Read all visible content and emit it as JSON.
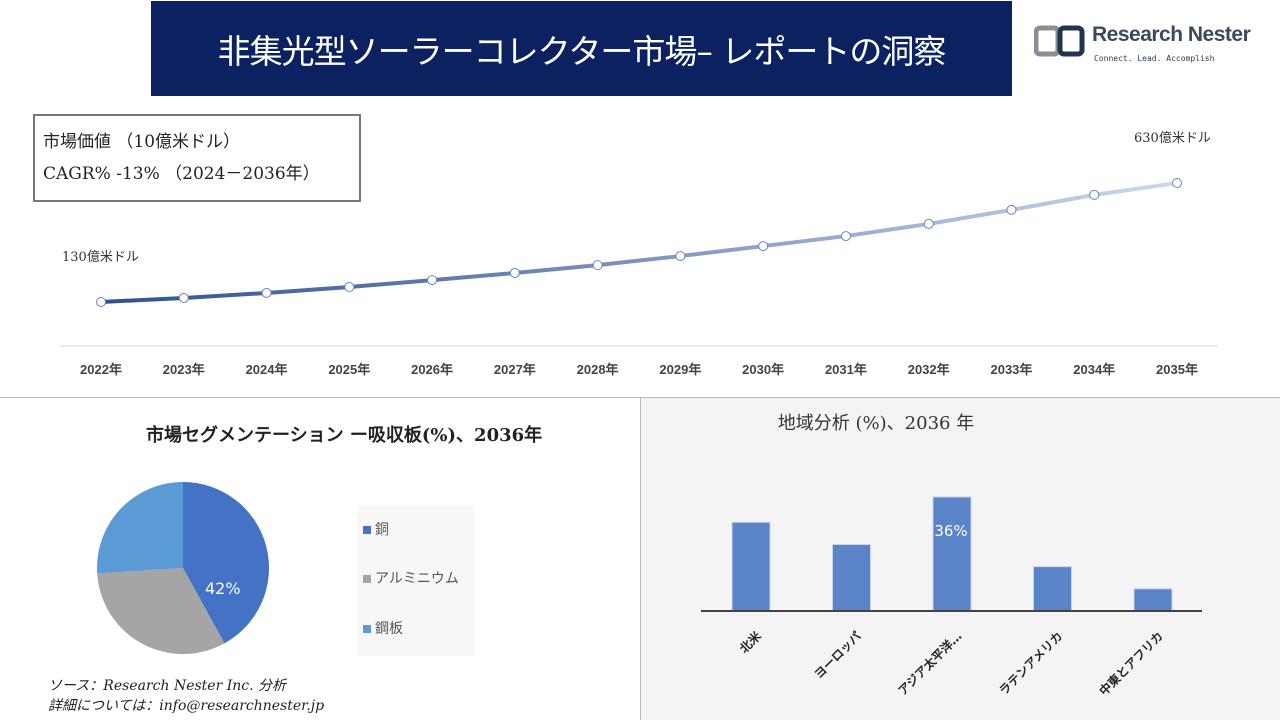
{
  "header": {
    "title": "非集光型ソーラーコレクター市場– レポートの洞察",
    "logo_name": "Research Nester",
    "logo_tagline": "Connect. Lead. Accomplish"
  },
  "info": {
    "market_value": "市場価値 （10億米ドル）",
    "cagr": "CAGR% -13% （2024－2036年）"
  },
  "chart_data": [
    {
      "type": "line",
      "categories": [
        "2022年",
        "2023年",
        "2024年",
        "2025年",
        "2026年",
        "2027年",
        "2028年",
        "2029年",
        "2030年",
        "2031年",
        "2032年",
        "2033年",
        "2034年",
        "2035年"
      ],
      "values": [
        130,
        147,
        168,
        193,
        222,
        252,
        285,
        323,
        365,
        407,
        458,
        517,
        580,
        630
      ],
      "start_label": "130億米ドル",
      "end_label": "630億米ドル",
      "grid": false,
      "colors": {
        "start": "#2f5090",
        "end": "#cdd6ec"
      }
    },
    {
      "type": "pie",
      "title": "市場セグメンテーション ー吸収板(%)、2036年",
      "categories": [
        "銅",
        "アルミニウム",
        "鋼板"
      ],
      "values": [
        42,
        32,
        26
      ],
      "data_label": "42%",
      "colors": [
        "#4472c4",
        "#a5a5a5",
        "#5b9bd5"
      ],
      "legend": "right"
    },
    {
      "type": "bar",
      "title": "地域分析 (%)、2036 年",
      "categories": [
        "北米",
        "ヨーロッパ",
        "アジア太平洋…",
        "ラテンアメリカ",
        "中東とアフリカ"
      ],
      "values": [
        28,
        21,
        36,
        14,
        7
      ],
      "data_label": "36%",
      "color": "#5b84c8"
    }
  ],
  "footer": {
    "source": "ソース：Research Nester Inc. 分析",
    "details": "詳細については：info@researchnester.jp"
  }
}
